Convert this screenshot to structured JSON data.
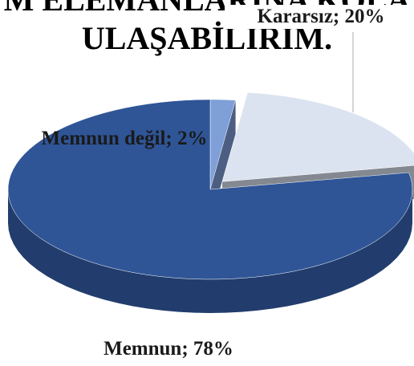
{
  "chart_data": {
    "type": "pie3d",
    "title_lines": [
      "M ELEMANLARINA KOLA",
      "ULAŞABİLİRİM."
    ],
    "categories": [
      "Memnun değil",
      "Kararsız",
      "Memnun"
    ],
    "values": [
      2,
      20,
      78
    ],
    "value_labels": [
      "Memnun değil; 2%",
      "Kararsız; 20%",
      "Memnun; 78%"
    ],
    "colors": [
      "#7f9fd8",
      "#dce3f0",
      "#2f5597"
    ],
    "exploded": [
      false,
      true,
      false
    ]
  }
}
